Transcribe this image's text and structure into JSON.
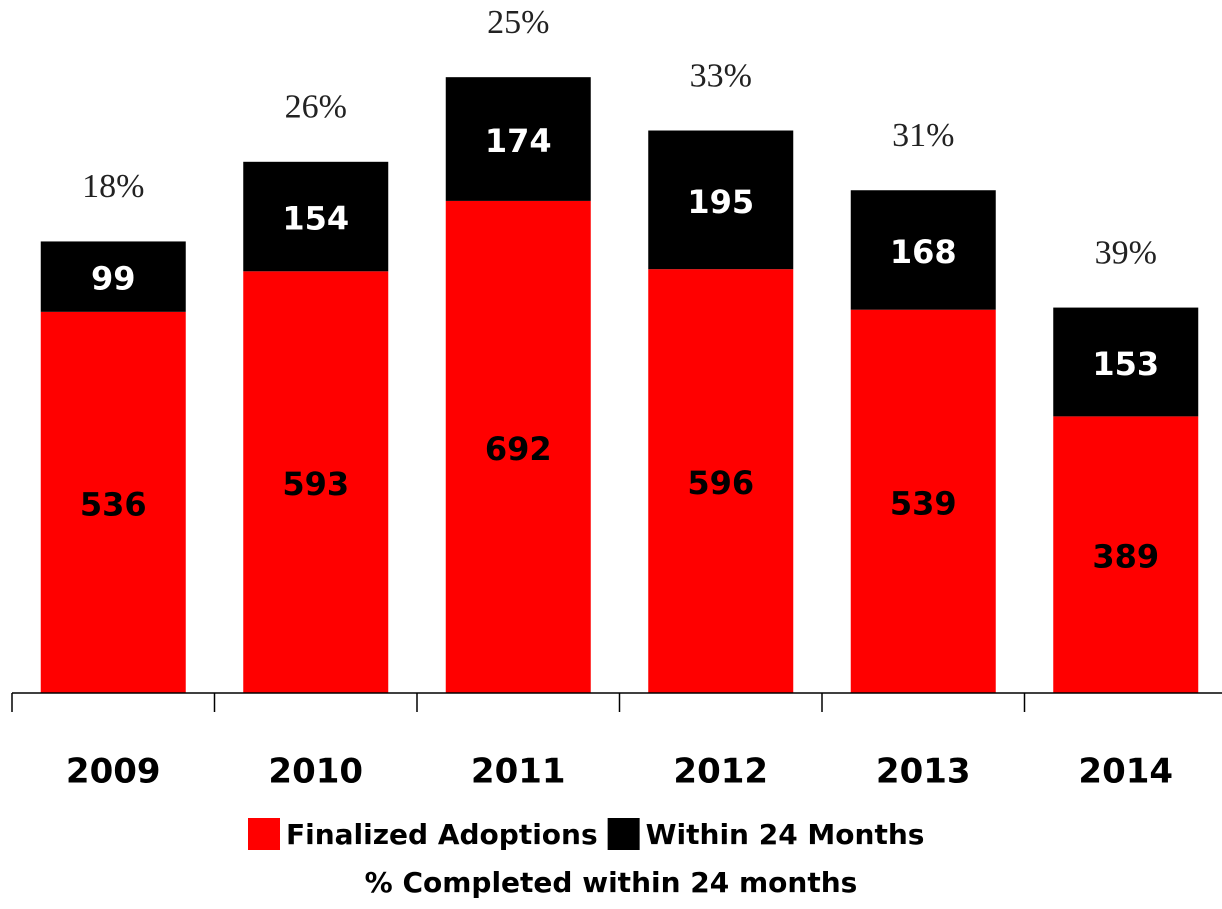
{
  "chart_data": {
    "type": "stacked_bar",
    "categories": [
      "2009",
      "2010",
      "2011",
      "2012",
      "2013",
      "2014"
    ],
    "series": [
      {
        "name": "Finalized Adoptions",
        "color": "#ff0000",
        "label_color": "#000000",
        "values": [
          536,
          593,
          692,
          596,
          539,
          389
        ]
      },
      {
        "name": "Within 24 Months",
        "color": "#000000",
        "label_color": "#ffffff",
        "values": [
          99,
          154,
          174,
          195,
          168,
          153
        ]
      }
    ],
    "percent_labels": {
      "name": "% Completed within 24 months",
      "labels": [
        "18%",
        "26%",
        "25%",
        "33%",
        "31%",
        "39%"
      ]
    },
    "ylim": [
      0,
      900
    ]
  }
}
